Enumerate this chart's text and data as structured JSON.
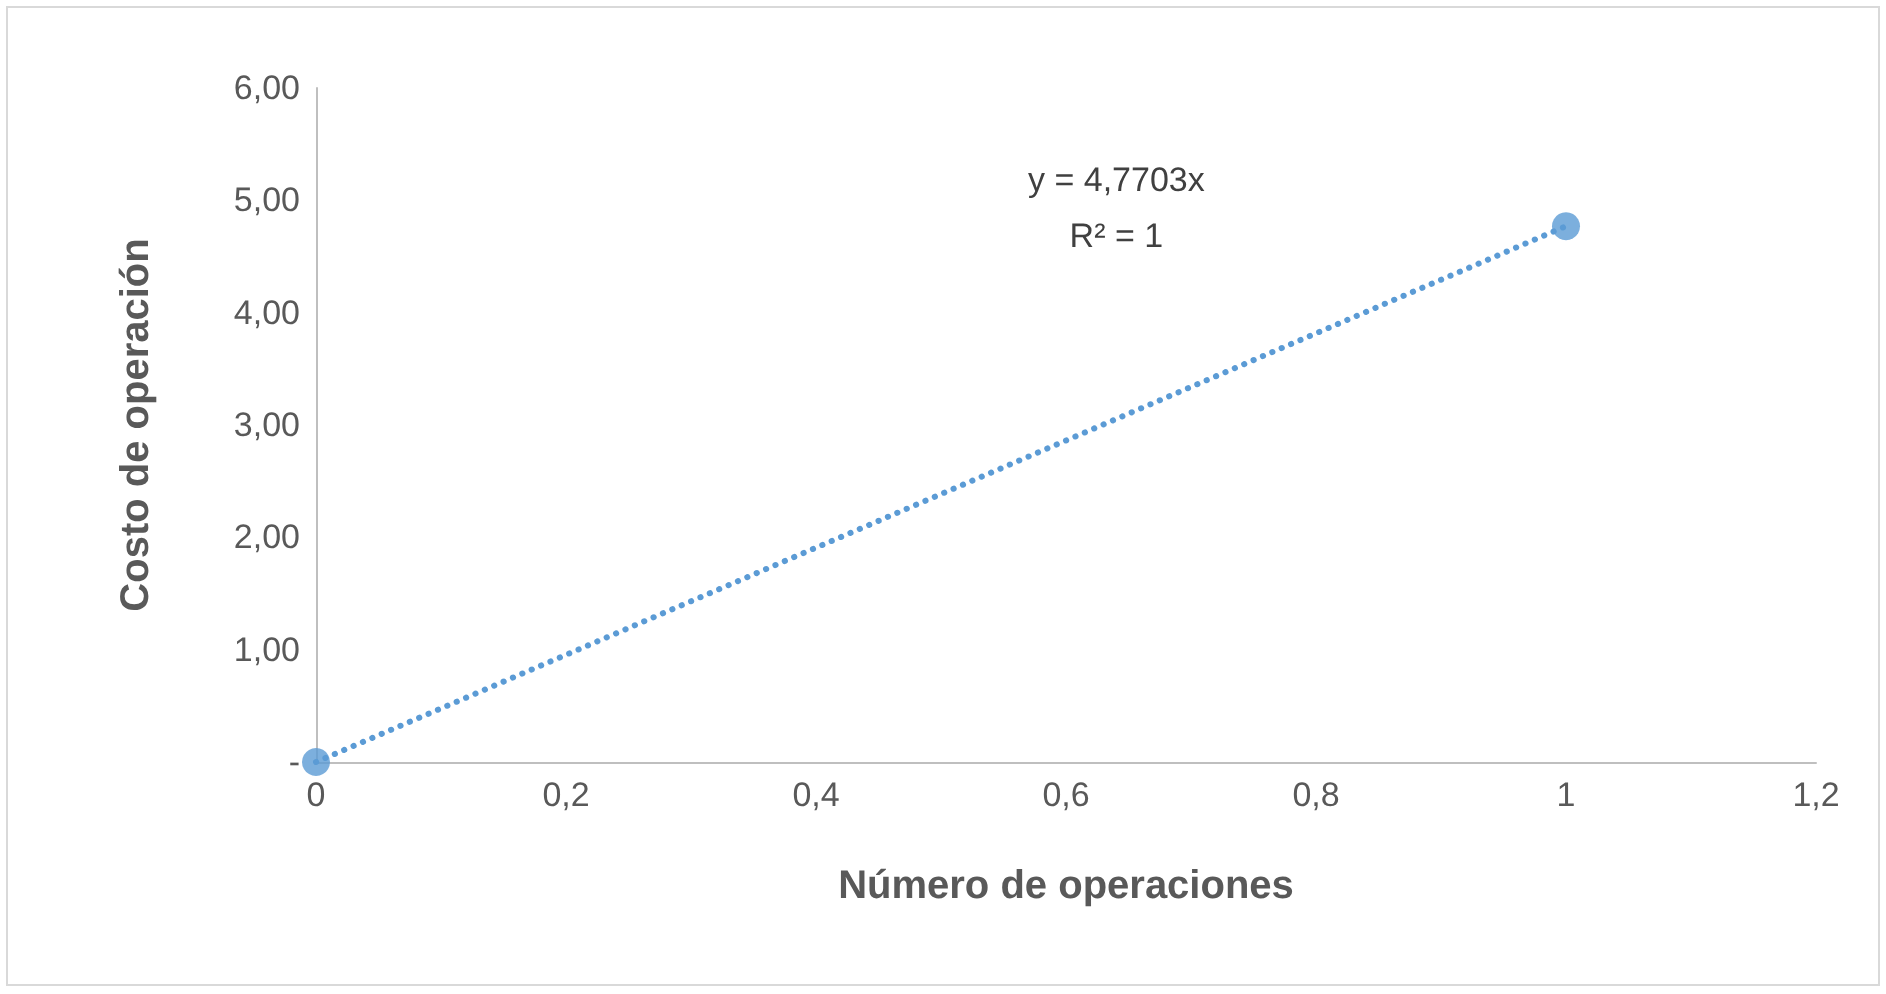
{
  "chart_data": {
    "type": "scatter",
    "xlabel": "Número de operaciones",
    "ylabel": "Costo de operación",
    "annotations": [
      "y = 4,7703x\nR² = 1"
    ],
    "x": [
      0,
      1
    ],
    "series": [
      {
        "type": "scatter",
        "color": "#5b9bd5",
        "values": [
          0,
          4.77
        ],
        "marker": "circle"
      },
      {
        "type": "line",
        "color": "#5b9bd5",
        "values": [
          0,
          4.77
        ],
        "marker": "none",
        "line_style": "dotted"
      }
    ],
    "xlim": [
      0,
      1.2
    ],
    "ylim": [
      0,
      6
    ],
    "xticks": [
      0,
      {
        "value": 0.2,
        "label": "0,2"
      },
      {
        "value": 0.4,
        "label": "0,4"
      },
      {
        "value": 0.6,
        "label": "0,6"
      },
      {
        "value": 0.8,
        "label": "0,8"
      },
      1,
      {
        "value": 1.2,
        "label": "1,2"
      }
    ],
    "yticks": [
      {
        "value": 0,
        "label": "-"
      },
      {
        "value": 1,
        "label": "1,00"
      },
      {
        "value": 2,
        "label": "2,00"
      },
      {
        "value": 3,
        "label": "3,00"
      },
      {
        "value": 4,
        "label": "4,00"
      },
      {
        "value": 5,
        "label": "5,00"
      },
      {
        "value": 6,
        "label": "6,00"
      }
    ],
    "grid": false
  }
}
